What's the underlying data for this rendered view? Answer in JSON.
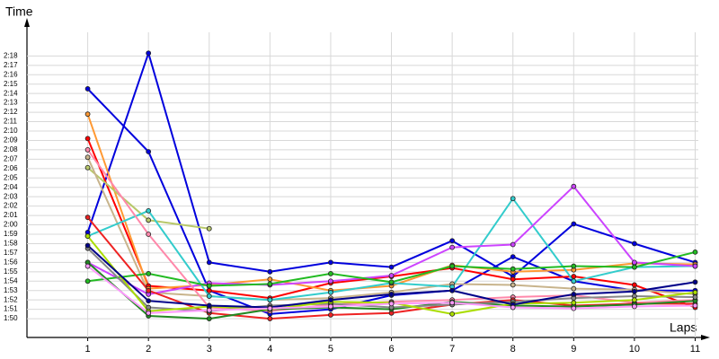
{
  "chart_data": {
    "type": "line",
    "x_label": "Laps",
    "y_label": "Time",
    "x": [
      1,
      2,
      3,
      4,
      5,
      6,
      7,
      8,
      9,
      10,
      11
    ],
    "xlim": [
      0,
      11.2
    ],
    "xticks": [
      1,
      2,
      3,
      4,
      5,
      6,
      7,
      8,
      9,
      10,
      11
    ],
    "ylim": [
      108,
      141
    ],
    "yticks": [
      {
        "value": 110,
        "label": "1:50"
      },
      {
        "value": 111,
        "label": "1:51"
      },
      {
        "value": 112,
        "label": "1:52"
      },
      {
        "value": 113,
        "label": "1:53"
      },
      {
        "value": 114,
        "label": "1:54"
      },
      {
        "value": 115,
        "label": "1:55"
      },
      {
        "value": 116,
        "label": "1:56"
      },
      {
        "value": 117,
        "label": "1:57"
      },
      {
        "value": 118,
        "label": "1:58"
      },
      {
        "value": 119,
        "label": "1:59"
      },
      {
        "value": 120,
        "label": "2:00"
      },
      {
        "value": 121,
        "label": "2:01"
      },
      {
        "value": 122,
        "label": "2:02"
      },
      {
        "value": 123,
        "label": "2:03"
      },
      {
        "value": 124,
        "label": "2:04"
      },
      {
        "value": 125,
        "label": "2:05"
      },
      {
        "value": 126,
        "label": "2:06"
      },
      {
        "value": 127,
        "label": "2:07"
      },
      {
        "value": 128,
        "label": "2:08"
      },
      {
        "value": 129,
        "label": "2:09"
      },
      {
        "value": 130,
        "label": "2:10"
      },
      {
        "value": 131,
        "label": "2:11"
      },
      {
        "value": 132,
        "label": "2:12"
      },
      {
        "value": 133,
        "label": "2:13"
      },
      {
        "value": 134,
        "label": "2:14"
      },
      {
        "value": 135,
        "label": "2:15"
      },
      {
        "value": 136,
        "label": "2:16"
      },
      {
        "value": 137,
        "label": "2:17"
      },
      {
        "value": 138,
        "label": "2:18"
      }
    ],
    "grid": true,
    "series": [
      {
        "color": "#0000dd",
        "values": [
          119.2,
          138.3,
          116,
          115,
          116,
          115.5,
          118.3,
          114.5,
          120.1,
          118,
          116
        ]
      },
      {
        "color": "#0000dd",
        "values": [
          134.5,
          127.8,
          113,
          110.5,
          111,
          112.5,
          113,
          116.6,
          114,
          113,
          113
        ]
      },
      {
        "color": "#ff0000",
        "values": [
          129.2,
          113.5,
          113,
          112.2,
          113.8,
          114.5,
          115.4,
          114.2,
          114.5,
          113.6,
          111.2
        ]
      },
      {
        "color": "#ff9933",
        "values": [
          131.8,
          113.2,
          113.6,
          114.2,
          113,
          113.5,
          115.7,
          115,
          115.2,
          115.9,
          115.8
        ]
      },
      {
        "color": "#b8c86a",
        "values": [
          126.1,
          120.5,
          119.6,
          null,
          null,
          null,
          null,
          null,
          null,
          null,
          null
        ]
      },
      {
        "color": "#c8b48c",
        "values": [
          127.2,
          112.8,
          112.4,
          112,
          112.2,
          112.8,
          113.7,
          113.6,
          113.2,
          113.1,
          112.6
        ]
      },
      {
        "color": "#33cccc",
        "values": [
          118.8,
          121.5,
          112.4,
          112,
          112.8,
          113.8,
          113.4,
          122.8,
          114,
          115.5,
          115.6
        ]
      },
      {
        "color": "#cc44ff",
        "values": [
          116,
          112.6,
          113.8,
          113.6,
          114,
          114.6,
          117.6,
          117.9,
          124.1,
          116,
          115.6
        ]
      },
      {
        "color": "#22bb22",
        "values": [
          114,
          114.8,
          113.5,
          113.7,
          114.8,
          113.9,
          115.6,
          115.3,
          115.6,
          115.5,
          117.1
        ]
      },
      {
        "color": "#ff88aa",
        "values": [
          128,
          119,
          111.2,
          110.8,
          111.5,
          111.8,
          112,
          112.3,
          112.5,
          111.7,
          112
        ]
      },
      {
        "color": "#ee2222",
        "values": [
          120.8,
          113,
          110.6,
          110,
          110.4,
          110.6,
          111.5,
          112,
          111.4,
          111.6,
          111.6
        ]
      },
      {
        "color": "#228822",
        "values": [
          116,
          110.3,
          110,
          111,
          111.2,
          111,
          111.8,
          111.4,
          111.3,
          111.5,
          111.9
        ]
      },
      {
        "color": "#888888",
        "values": [
          117.5,
          111.2,
          110.8,
          111.4,
          111.6,
          111.2,
          111.5,
          111.8,
          112.2,
          112.4,
          112.3
        ]
      },
      {
        "color": "#aadd00",
        "values": [
          118.8,
          110.8,
          111.3,
          111,
          111.8,
          111.7,
          110.5,
          111.6,
          111.7,
          112,
          112.8
        ]
      },
      {
        "color": "#000088",
        "values": [
          117.8,
          111.9,
          111.4,
          111.2,
          112,
          112.6,
          113,
          111.5,
          112.6,
          112.9,
          113.9
        ]
      },
      {
        "color": "#ff99ff",
        "values": [
          115.6,
          110.6,
          110.9,
          111.1,
          111.3,
          111.6,
          111.7,
          111.2,
          111.1,
          111.3,
          111.4
        ]
      }
    ]
  }
}
